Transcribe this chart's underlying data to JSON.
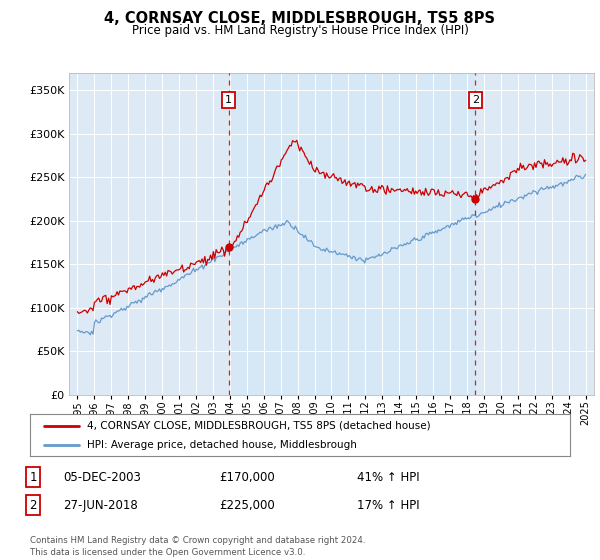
{
  "title": "4, CORNSAY CLOSE, MIDDLESBROUGH, TS5 8PS",
  "subtitle": "Price paid vs. HM Land Registry's House Price Index (HPI)",
  "legend_line1": "4, CORNSAY CLOSE, MIDDLESBROUGH, TS5 8PS (detached house)",
  "legend_line2": "HPI: Average price, detached house, Middlesbrough",
  "sale1_label": "1",
  "sale1_date": "05-DEC-2003",
  "sale1_price": "£170,000",
  "sale1_hpi": "41% ↑ HPI",
  "sale2_label": "2",
  "sale2_date": "27-JUN-2018",
  "sale2_price": "£225,000",
  "sale2_hpi": "17% ↑ HPI",
  "footer": "Contains HM Land Registry data © Crown copyright and database right 2024.\nThis data is licensed under the Open Government Licence v3.0.",
  "hpi_color": "#6699cc",
  "price_color": "#cc0000",
  "shade_color": "#d6e8f5",
  "sale1_x": 2003.92,
  "sale1_y": 170000,
  "sale2_x": 2018.5,
  "sale2_y": 225000,
  "ylim": [
    0,
    370000
  ],
  "xlim": [
    1994.5,
    2025.5
  ],
  "yticks": [
    0,
    50000,
    100000,
    150000,
    200000,
    250000,
    300000,
    350000
  ],
  "xticks": [
    1995,
    1996,
    1997,
    1998,
    1999,
    2000,
    2001,
    2002,
    2003,
    2004,
    2005,
    2006,
    2007,
    2008,
    2009,
    2010,
    2011,
    2012,
    2013,
    2014,
    2015,
    2016,
    2017,
    2018,
    2019,
    2020,
    2021,
    2022,
    2023,
    2024,
    2025
  ],
  "grid_color": "#ffffff",
  "bg_color": "#ddeaf5"
}
